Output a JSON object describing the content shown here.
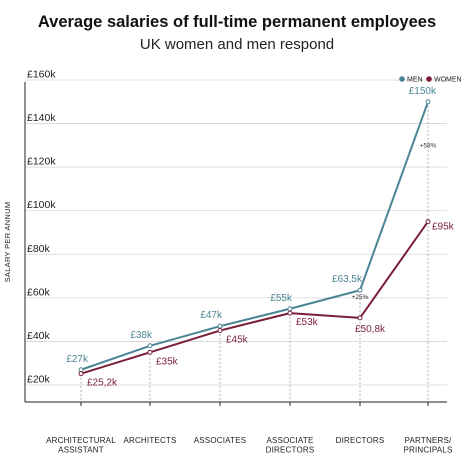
{
  "chart_data": {
    "type": "line",
    "title": "Average salaries of full-time permanent employees",
    "subtitle": "UK women and men respond",
    "ylabel": "SALARY PER ANNUM",
    "ylim": [
      20,
      160
    ],
    "yticks": [
      {
        "value": 20,
        "label": "£20k"
      },
      {
        "value": 40,
        "label": "£40k"
      },
      {
        "value": 60,
        "label": "£60k"
      },
      {
        "value": 80,
        "label": "£80k"
      },
      {
        "value": 100,
        "label": "£100k"
      },
      {
        "value": 120,
        "label": "£120k"
      },
      {
        "value": 140,
        "label": "£140k"
      },
      {
        "value": 160,
        "label": "£160k"
      }
    ],
    "categories": [
      [
        "ARCHITECTURAL",
        "ASSISTANT"
      ],
      [
        "ARCHITECTS"
      ],
      [
        "ASSOCIATES"
      ],
      [
        "ASSOCIATE",
        "DIRECTORS"
      ],
      [
        "DIRECTORS"
      ],
      [
        "PARTNERS/",
        "PRINCIPALS"
      ]
    ],
    "series": [
      {
        "name": "MEN",
        "color": "#4b8593",
        "values": [
          27,
          38,
          47,
          55,
          63.5,
          150
        ],
        "labels": [
          "£27k",
          "£38k",
          "£47k",
          "£55k",
          "£63,5k",
          "£150k"
        ]
      },
      {
        "name": "WOMEN",
        "color": "#7a1f37",
        "values": [
          25.2,
          35,
          45,
          53,
          50.8,
          95
        ],
        "labels": [
          "£25,2k",
          "£35k",
          "£45k",
          "£53k",
          "£50,8k",
          "£95k"
        ]
      }
    ],
    "annotations": [
      {
        "category_index": 4,
        "text": "+25%"
      },
      {
        "category_index": 5,
        "text": "+58%"
      }
    ],
    "legend": "top-right",
    "grid": "dashed vertical drop lines per category"
  }
}
